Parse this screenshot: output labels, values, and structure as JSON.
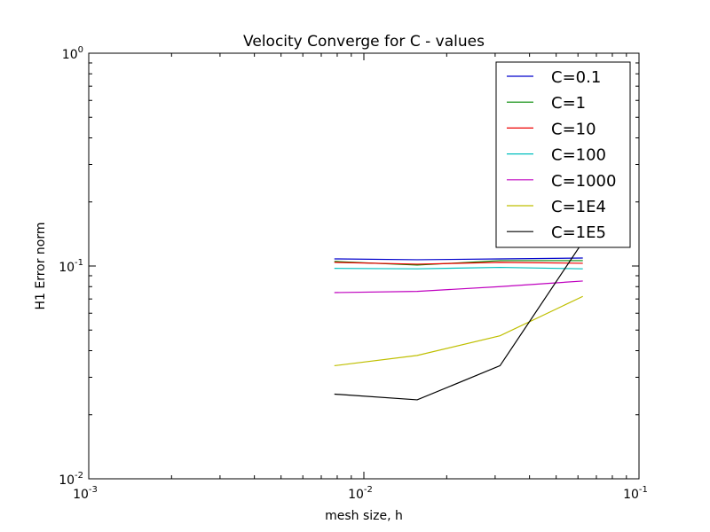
{
  "chart_data": {
    "type": "line",
    "title": "Velocity Converge for C - values",
    "xlabel": "mesh size, h",
    "ylabel": "H1 Error norm",
    "xscale": "log",
    "yscale": "log",
    "xlim": [
      0.001,
      0.1
    ],
    "ylim": [
      0.01,
      1
    ],
    "x_ticks": [
      {
        "value": 0.001,
        "base": "10",
        "exp": "-3"
      },
      {
        "value": 0.01,
        "base": "10",
        "exp": "-2"
      },
      {
        "value": 0.1,
        "base": "10",
        "exp": "-1"
      }
    ],
    "y_ticks": [
      {
        "value": 0.01,
        "base": "10",
        "exp": "-2"
      },
      {
        "value": 0.1,
        "base": "10",
        "exp": "-1"
      },
      {
        "value": 1,
        "base": "10",
        "exp": "0"
      }
    ],
    "grid": false,
    "legend_position": "top-right",
    "x": [
      0.0078125,
      0.015625,
      0.03125,
      0.0625
    ],
    "series": [
      {
        "name": "C=0.1",
        "color": "#0000cc",
        "values": [
          0.108,
          0.107,
          0.108,
          0.109
        ]
      },
      {
        "name": "C=1",
        "color": "#008800",
        "values": [
          0.105,
          0.101,
          0.106,
          0.106
        ]
      },
      {
        "name": "C=10",
        "color": "#ee0000",
        "values": [
          0.104,
          0.102,
          0.104,
          0.103
        ]
      },
      {
        "name": "C=100",
        "color": "#00bfbf",
        "values": [
          0.0975,
          0.097,
          0.0985,
          0.097
        ]
      },
      {
        "name": "C=1000",
        "color": "#bf00bf",
        "values": [
          0.075,
          0.076,
          0.08,
          0.085
        ]
      },
      {
        "name": "C=1E4",
        "color": "#bfbf00",
        "values": [
          0.034,
          0.038,
          0.047,
          0.072
        ]
      },
      {
        "name": "C=1E5",
        "color": "#000000",
        "values": [
          0.025,
          0.0235,
          0.034,
          0.13
        ]
      }
    ]
  }
}
